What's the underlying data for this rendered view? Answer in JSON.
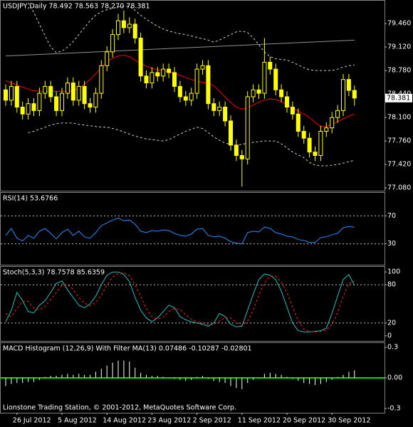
{
  "chart_data": [
    {
      "type": "candlestick",
      "title": "USDJPY,Daily  78.492 78.563 78.270 78.381",
      "open": [
        78.5,
        78.35,
        78.55,
        78.25,
        78.15,
        78.3,
        78.2,
        78.45,
        78.55,
        78.4,
        78.2,
        78.45,
        78.6,
        78.35,
        78.55,
        78.3,
        78.25,
        78.45,
        78.85,
        79.05,
        79.3,
        79.5,
        79.4,
        79.45,
        79.25,
        78.7,
        78.6,
        78.75,
        78.7,
        78.8,
        78.75,
        78.55,
        78.4,
        78.35,
        78.45,
        78.8,
        78.85,
        78.3,
        78.2,
        78.25,
        78.05,
        77.7,
        77.55,
        77.5,
        78.4,
        78.5,
        78.45,
        78.9,
        78.8,
        78.5,
        78.4,
        78.25,
        78.15,
        77.9,
        77.8,
        77.6,
        77.55,
        77.9,
        77.95,
        78.1,
        78.2,
        78.65,
        78.492
      ],
      "high": [
        78.58,
        78.63,
        78.63,
        78.33,
        78.38,
        78.38,
        78.53,
        78.63,
        78.63,
        78.48,
        78.53,
        78.68,
        78.68,
        78.63,
        78.63,
        78.38,
        78.53,
        78.93,
        79.13,
        79.38,
        79.6,
        79.65,
        79.55,
        79.53,
        79.33,
        78.78,
        78.83,
        78.83,
        78.88,
        78.88,
        78.83,
        78.63,
        78.48,
        78.53,
        78.88,
        78.93,
        78.93,
        78.38,
        78.33,
        78.33,
        78.13,
        77.78,
        77.63,
        78.48,
        78.58,
        78.58,
        79.25,
        78.98,
        78.88,
        78.58,
        78.48,
        78.33,
        78.23,
        77.98,
        77.88,
        77.68,
        77.98,
        78.03,
        78.18,
        78.28,
        78.73,
        78.73,
        78.563
      ],
      "low": [
        78.27,
        78.27,
        78.17,
        78.07,
        78.07,
        78.12,
        78.12,
        78.37,
        78.32,
        78.12,
        78.12,
        78.37,
        78.27,
        78.27,
        78.22,
        78.17,
        78.17,
        78.37,
        78.77,
        78.97,
        79.22,
        79.32,
        79.32,
        79.17,
        78.62,
        78.52,
        78.52,
        78.62,
        78.62,
        78.67,
        78.47,
        78.32,
        78.27,
        78.27,
        78.37,
        78.72,
        78.22,
        78.12,
        78.12,
        77.97,
        77.62,
        77.47,
        77.1,
        77.42,
        78.32,
        78.37,
        78.37,
        78.72,
        78.42,
        78.32,
        78.17,
        78.07,
        77.82,
        77.72,
        77.52,
        77.47,
        77.47,
        77.82,
        77.87,
        78.02,
        78.12,
        78.41,
        78.27
      ],
      "close": [
        78.35,
        78.55,
        78.25,
        78.15,
        78.3,
        78.2,
        78.45,
        78.55,
        78.4,
        78.2,
        78.45,
        78.6,
        78.35,
        78.55,
        78.3,
        78.25,
        78.45,
        78.85,
        79.05,
        79.3,
        79.5,
        79.4,
        79.45,
        79.25,
        78.7,
        78.6,
        78.75,
        78.7,
        78.8,
        78.75,
        78.55,
        78.4,
        78.35,
        78.45,
        78.8,
        78.85,
        78.3,
        78.2,
        78.25,
        78.05,
        77.7,
        77.55,
        77.5,
        78.4,
        78.5,
        78.45,
        78.9,
        78.8,
        78.5,
        78.4,
        78.25,
        78.15,
        77.9,
        77.8,
        77.6,
        77.55,
        77.9,
        77.95,
        78.1,
        78.2,
        78.65,
        78.492,
        78.381
      ],
      "up_color": "#000000",
      "down_color": "#ffff00",
      "wick_color": "#ffff00",
      "series": [
        {
          "color": "#ff0000",
          "dashed": false,
          "values": [
            78.63,
            78.6,
            78.57,
            78.54,
            78.51,
            78.49,
            78.48,
            78.48,
            78.48,
            78.48,
            78.48,
            78.48,
            78.49,
            78.52,
            78.58,
            78.65,
            78.73,
            78.82,
            78.9,
            78.96,
            78.99,
            79.0,
            78.98,
            78.93,
            78.88,
            78.84,
            78.81,
            78.79,
            78.78,
            78.76,
            78.74,
            78.71,
            78.68,
            78.65,
            78.63,
            78.61,
            78.59,
            78.56,
            78.48,
            78.4,
            78.32,
            78.25,
            78.22,
            78.24,
            78.28,
            78.32,
            78.35,
            78.37,
            78.36,
            78.33,
            78.28,
            78.24,
            78.19,
            78.15,
            78.1,
            78.03,
            77.97,
            77.97,
            78.0,
            78.04,
            78.08,
            78.12,
            78.15
          ]
        },
        {
          "color": "#d0d0d0",
          "dashed": true,
          "values": [
            null,
            null,
            null,
            null,
            79.76,
            79.62,
            79.45,
            79.28,
            79.12,
            79.04,
            79.06,
            79.12,
            79.2,
            79.3,
            79.4,
            79.5,
            79.58,
            79.63,
            79.66,
            79.68,
            79.7,
            79.71,
            79.71,
            79.65,
            79.58,
            79.52,
            79.47,
            79.42,
            79.38,
            79.35,
            79.33,
            79.31,
            79.3,
            79.28,
            79.26,
            79.24,
            79.22,
            79.19,
            79.22,
            79.26,
            79.3,
            79.34,
            79.35,
            79.33,
            79.25,
            79.15,
            79.05,
            78.98,
            78.95,
            78.94,
            78.93,
            78.9,
            78.86,
            78.82,
            78.79,
            78.78,
            78.78,
            78.78,
            78.78,
            78.8,
            78.83,
            78.85,
            78.86
          ]
        },
        {
          "color": "#d0d0d0",
          "dashed": true,
          "values": [
            null,
            null,
            null,
            null,
            77.88,
            77.9,
            77.93,
            77.96,
            77.99,
            78.01,
            78.02,
            78.02,
            78.02,
            78.0,
            77.99,
            77.98,
            77.97,
            77.96,
            77.96,
            77.94,
            77.92,
            77.89,
            77.86,
            77.83,
            77.81,
            77.79,
            77.78,
            77.77,
            77.76,
            77.78,
            77.82,
            77.86,
            77.9,
            77.93,
            77.96,
            77.94,
            77.88,
            77.82,
            77.77,
            77.73,
            77.71,
            77.7,
            77.71,
            77.73,
            77.74,
            77.75,
            77.76,
            77.76,
            77.76,
            77.72,
            77.66,
            77.6,
            77.56,
            77.52,
            77.45,
            77.41,
            77.4,
            77.4,
            77.41,
            77.42,
            77.44,
            77.46,
            77.48
          ]
        }
      ],
      "trendline": {
        "color": "#909090",
        "values": [
          78.99,
          79.22
        ]
      },
      "last_price": 78.381,
      "ylim": [
        77.04,
        79.79
      ],
      "yticks": [
        {
          "value": 77.08,
          "label": "77.080"
        },
        {
          "value": 77.42,
          "label": "77.420"
        },
        {
          "value": 77.76,
          "label": "77.760"
        },
        {
          "value": 78.1,
          "label": "78.100"
        },
        {
          "value": 78.44,
          "label": "78.440"
        },
        {
          "value": 78.78,
          "label": "78.780"
        },
        {
          "value": 79.12,
          "label": "79.120"
        },
        {
          "value": 79.46,
          "label": "79.460"
        }
      ]
    },
    {
      "type": "line",
      "title": "RSI(14) 53.6766",
      "series": [
        {
          "color": "#1e90ff",
          "dashed": false,
          "values": [
            42,
            52,
            38,
            34,
            42,
            38,
            48,
            52,
            45,
            37,
            46,
            51,
            42,
            48,
            40,
            38,
            46,
            56,
            60,
            64,
            67,
            63,
            64,
            58,
            48,
            46,
            49,
            48,
            50,
            49,
            45,
            42,
            41,
            44,
            51,
            52,
            42,
            40,
            41,
            38,
            33,
            31,
            30,
            46,
            48,
            47,
            54,
            52,
            46,
            44,
            41,
            40,
            36,
            35,
            32,
            32,
            39,
            40,
            43,
            45,
            53,
            55,
            53.6766
          ]
        }
      ],
      "ylim": [
        0,
        103
      ],
      "yticks": [
        30,
        70
      ],
      "levels": [
        30,
        70
      ],
      "level_color": "#c0c0c0"
    },
    {
      "type": "line",
      "title": "Stoch(5,3,3) 78.7578 85.6359",
      "series": [
        {
          "color": "#20c0c0",
          "dashed": false,
          "values": [
            22,
            40,
            68,
            55,
            38,
            36,
            48,
            55,
            68,
            82,
            86,
            72,
            60,
            48,
            44,
            50,
            62,
            80,
            95,
            100,
            100,
            96,
            85,
            60,
            40,
            28,
            22,
            28,
            38,
            48,
            44,
            30,
            25,
            22,
            20,
            18,
            15,
            20,
            35,
            30,
            18,
            14,
            15,
            40,
            65,
            88,
            97,
            95,
            88,
            70,
            45,
            20,
            8,
            6,
            6,
            7,
            8,
            12,
            35,
            62,
            88,
            96,
            78.7578
          ]
        },
        {
          "color": "#ff2020",
          "dashed": true,
          "values": [
            35,
            30,
            43,
            54,
            54,
            43,
            41,
            46,
            57,
            68,
            79,
            80,
            73,
            60,
            51,
            47,
            52,
            64,
            79,
            92,
            98,
            99,
            94,
            80,
            62,
            43,
            30,
            26,
            29,
            38,
            43,
            41,
            33,
            26,
            22,
            20,
            18,
            18,
            23,
            28,
            28,
            21,
            16,
            23,
            40,
            64,
            83,
            93,
            93,
            84,
            68,
            45,
            24,
            11,
            7,
            6,
            7,
            9,
            18,
            36,
            62,
            82,
            85.6359
          ]
        }
      ],
      "ylim": [
        -8,
        108
      ],
      "yticks": [
        100,
        80,
        20,
        0
      ],
      "levels": [
        20,
        80
      ],
      "level_color": "#c0c0c0"
    },
    {
      "type": "bar",
      "title": "MACD Histogram (12,26,9) With Filter MA(13) 0.07486 -0.10287 -0.02801",
      "values": [
        -0.08,
        -0.06,
        -0.05,
        -0.05,
        -0.04,
        -0.04,
        -0.02,
        0.01,
        0.02,
        0.02,
        0.03,
        0.04,
        0.03,
        0.04,
        0.03,
        0.03,
        0.06,
        0.09,
        0.12,
        0.15,
        0.17,
        0.17,
        0.16,
        0.1,
        0.05,
        0.03,
        0.02,
        0.02,
        0.01,
        0.0,
        -0.01,
        -0.02,
        -0.03,
        -0.02,
        0.01,
        0.02,
        -0.01,
        -0.03,
        -0.04,
        -0.05,
        -0.08,
        -0.1,
        -0.11,
        -0.05,
        -0.02,
        0.0,
        0.04,
        0.05,
        0.04,
        0.03,
        0.01,
        -0.01,
        -0.03,
        -0.05,
        -0.06,
        -0.07,
        -0.06,
        -0.04,
        -0.02,
        0.01,
        0.03,
        0.06,
        0.07486
      ],
      "color": "#ffffff",
      "ylim": [
        -0.342,
        0.342
      ],
      "yticks": [
        0.3,
        {
          "value": 0,
          "label": "0.00"
        },
        -0.3
      ],
      "levels": [
        0
      ],
      "level_color": "#00e000",
      "categories": [
        null,
        null,
        "26 Jul 2012",
        null,
        null,
        null,
        null,
        null,
        null,
        null,
        "5 Aug 2012",
        null,
        null,
        null,
        null,
        null,
        null,
        null,
        "14 Aug 2012",
        null,
        null,
        null,
        null,
        null,
        null,
        null,
        "23 Aug 2012",
        null,
        null,
        null,
        null,
        null,
        null,
        null,
        "2 Sep 2012",
        null,
        null,
        null,
        null,
        null,
        null,
        null,
        "11 Sep 2012",
        null,
        null,
        null,
        null,
        null,
        null,
        null,
        "20 Sep 2012",
        null,
        null,
        null,
        null,
        null,
        null,
        null,
        "30 Sep 2012",
        null,
        null,
        null,
        null
      ],
      "footer": "Lionstone Trading Station, © 2001-2012, MetaQuotes Software Corp."
    }
  ]
}
